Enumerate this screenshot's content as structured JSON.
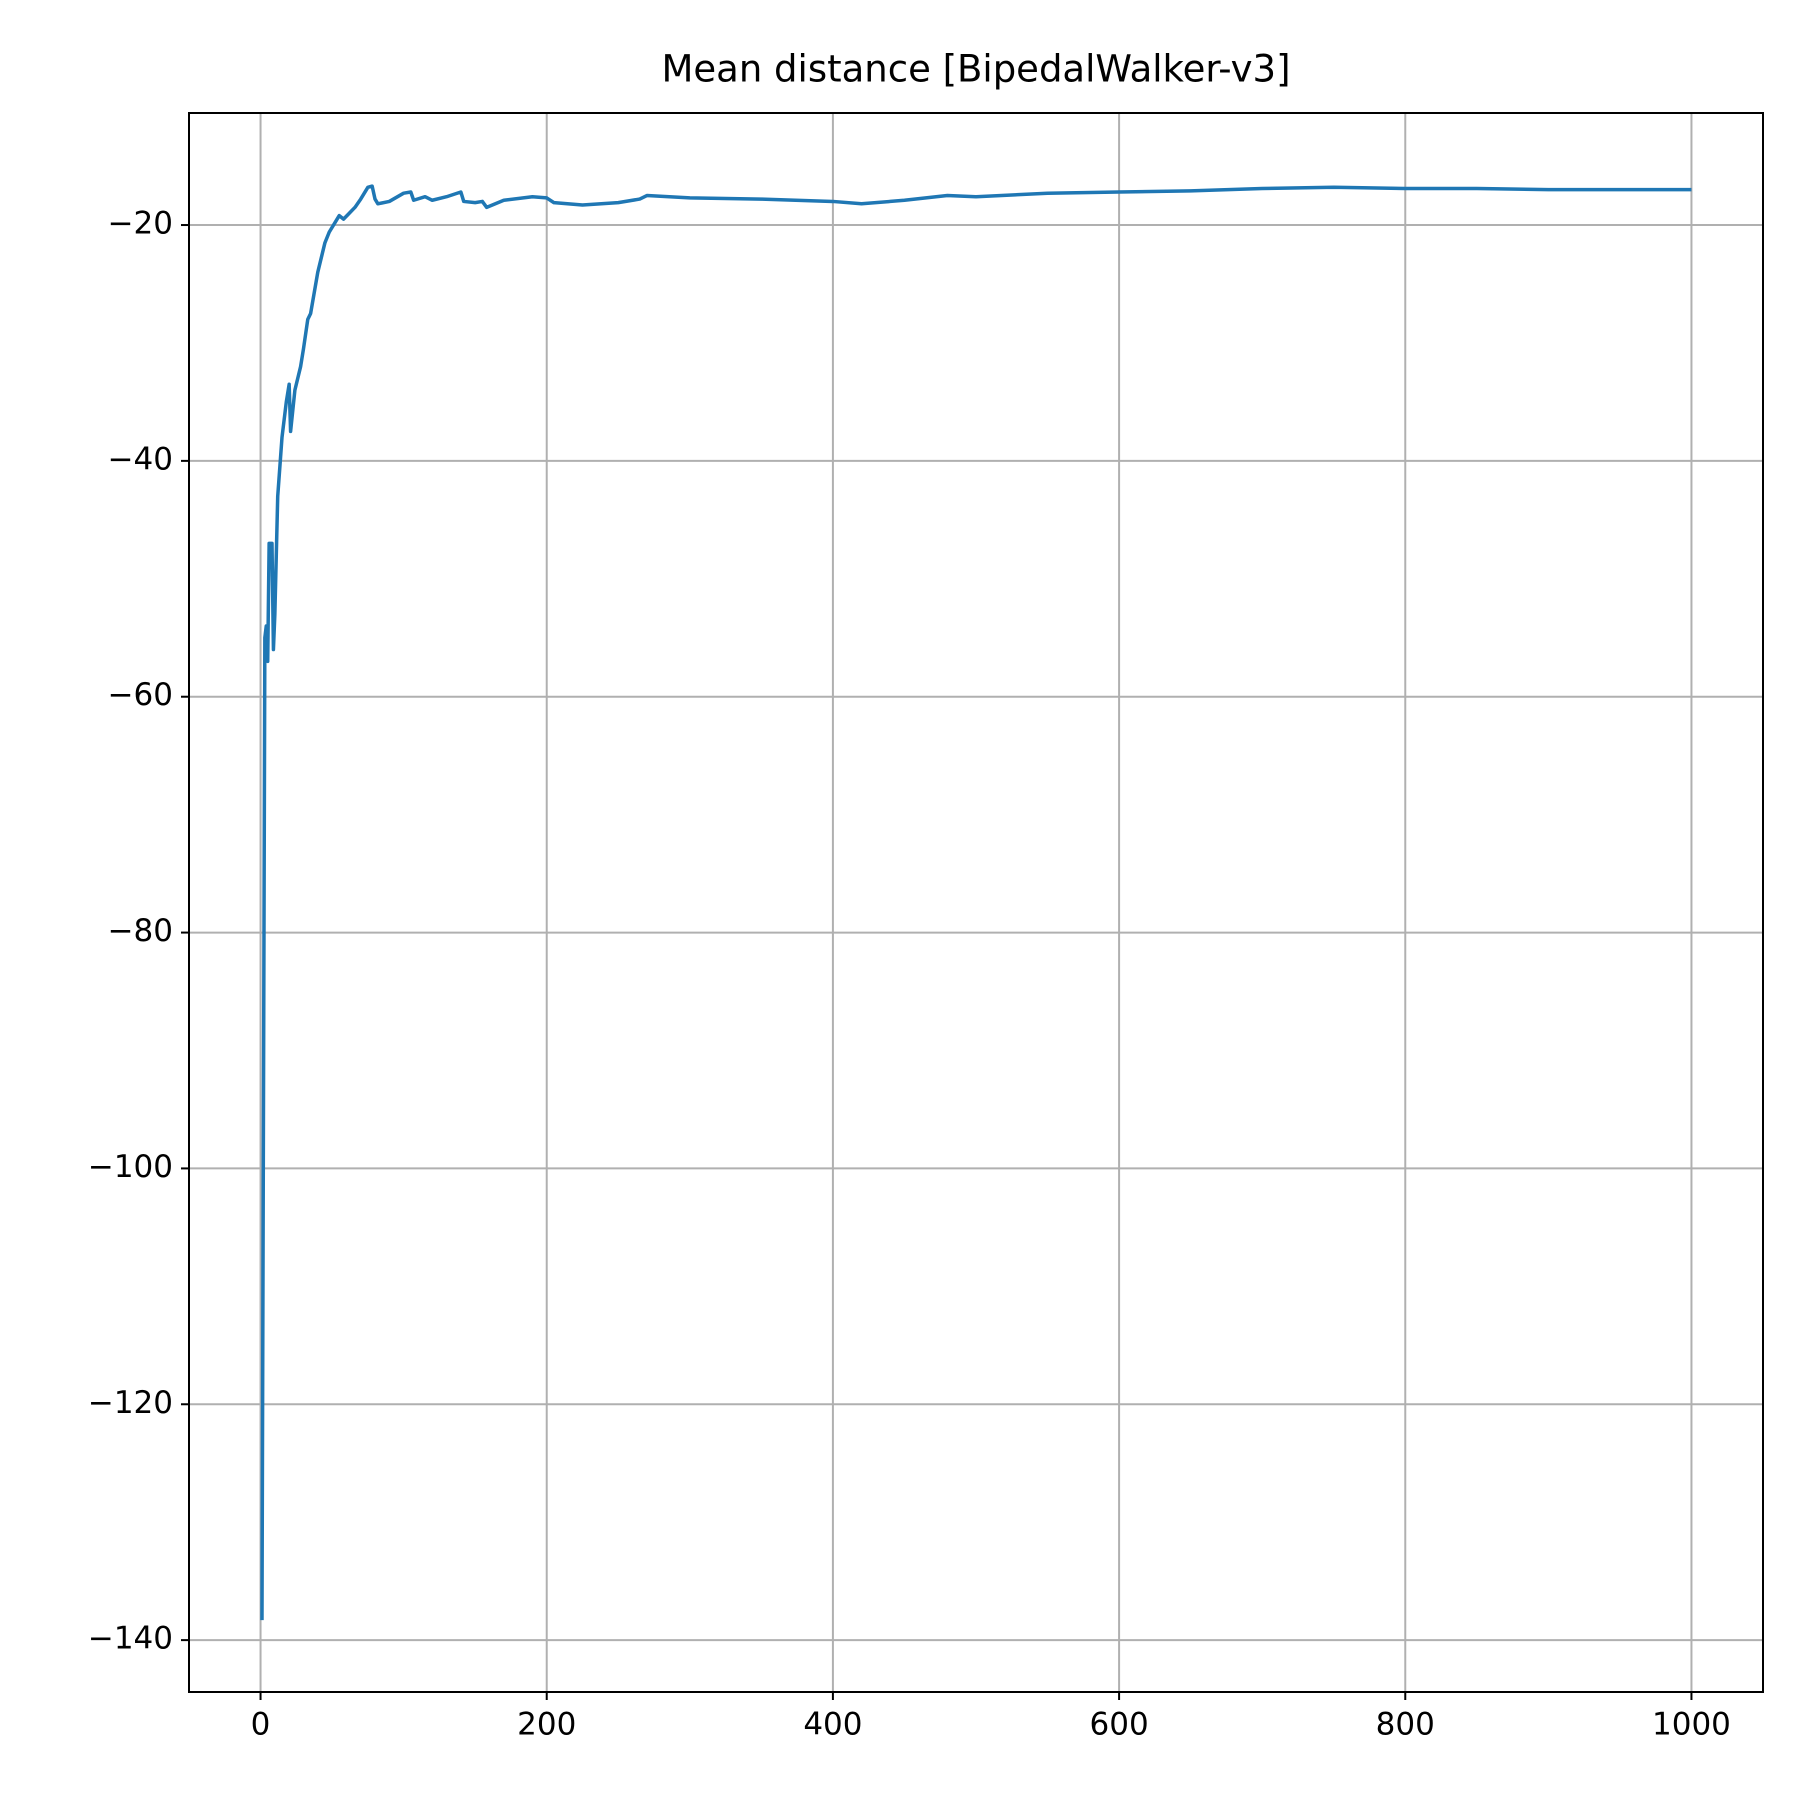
{
  "chart_data": {
    "type": "line",
    "title": "Mean distance [BipedalWalker-v3]",
    "x": [
      1,
      3,
      4,
      5,
      6,
      8,
      9,
      10,
      12,
      15,
      18,
      20,
      21,
      24,
      28,
      30,
      33,
      35,
      40,
      45,
      48,
      52,
      55,
      58,
      62,
      66,
      70,
      75,
      78,
      80,
      82,
      90,
      100,
      105,
      107,
      115,
      120,
      130,
      140,
      142,
      150,
      155,
      158,
      170,
      190,
      200,
      205,
      225,
      250,
      265,
      270,
      300,
      350,
      400,
      420,
      450,
      480,
      500,
      550,
      600,
      650,
      700,
      750,
      800,
      850,
      900,
      1000
    ],
    "values": [
      -138.3,
      -55,
      -54,
      -57,
      -47,
      -47,
      -56,
      -53,
      -43,
      -38,
      -35,
      -33.5,
      -37.5,
      -34,
      -32,
      -30.5,
      -28,
      -27.5,
      -24,
      -21.5,
      -20.6,
      -19.8,
      -19.2,
      -19.5,
      -19,
      -18.5,
      -17.8,
      -16.8,
      -16.7,
      -17.8,
      -18.2,
      -18,
      -17.3,
      -17.2,
      -17.9,
      -17.6,
      -17.9,
      -17.6,
      -17.2,
      -18,
      -18.1,
      -18,
      -18.5,
      -17.9,
      -17.6,
      -17.7,
      -18.1,
      -18.3,
      -18.1,
      -17.8,
      -17.5,
      -17.7,
      -17.8,
      -18,
      -18.2,
      -17.9,
      -17.5,
      -17.6,
      -17.3,
      -17.2,
      -17.1,
      -16.9,
      -16.8,
      -16.9,
      -16.9,
      -17.0,
      -17.0
    ],
    "color": "#1f77b4",
    "xlim": [
      -50,
      1050
    ],
    "xticks": [
      0,
      200,
      400,
      600,
      800,
      1000
    ],
    "ylim": [
      -144.4,
      -10.5
    ],
    "yticks": [
      {
        "value": -140,
        "label": "−140"
      },
      {
        "value": -120,
        "label": "−120"
      },
      {
        "value": -100,
        "label": "−100"
      },
      {
        "value": -80,
        "label": "−80"
      },
      {
        "value": -60,
        "label": "−60"
      },
      {
        "value": -40,
        "label": "−40"
      },
      {
        "value": -20,
        "label": "−20"
      }
    ],
    "grid": true
  }
}
